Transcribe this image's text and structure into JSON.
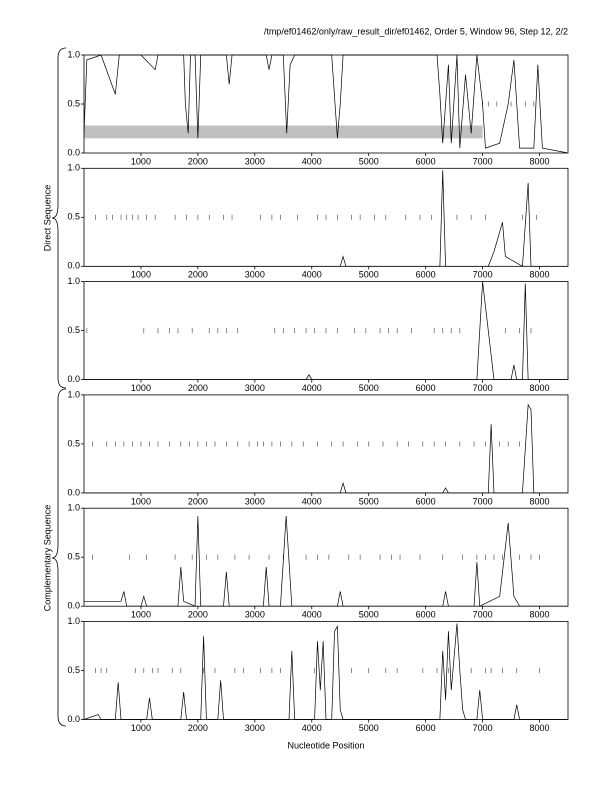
{
  "title": "/tmp/ef01462/only/raw_result_dir/ef01462, Order 5, Window 96, Step 12, 2/2",
  "xlabel": "Nucleotide Position",
  "group_labels": [
    "Direct Sequence",
    "Complementary Sequence"
  ],
  "chart_data": [
    {
      "type": "line",
      "xlim": [
        0,
        8500
      ],
      "ylim": [
        0,
        1
      ],
      "xticks": [
        1000,
        2000,
        3000,
        4000,
        5000,
        6000,
        7000,
        8000
      ],
      "yticks": [
        {
          "value": 0,
          "label": "0.0"
        },
        0.5,
        {
          "value": 1,
          "label": "1.0"
        }
      ],
      "highlight": {
        "x": [
          0,
          7000
        ],
        "y": [
          0.15,
          0.28
        ]
      },
      "x": [
        0,
        50,
        300,
        550,
        620,
        1000,
        1250,
        1300,
        1750,
        1780,
        1830,
        1870,
        1950,
        2000,
        2050,
        2500,
        2550,
        2600,
        3200,
        3250,
        3300,
        3500,
        3560,
        3620,
        3700,
        4350,
        4450,
        4500,
        4550,
        6200,
        6250,
        6300,
        6400,
        6450,
        6550,
        6600,
        6700,
        6800,
        6900,
        7000,
        7050,
        7300,
        7450,
        7550,
        7650,
        7900,
        7970,
        8050,
        8500
      ],
      "values": [
        0.2,
        0.95,
        1,
        0.6,
        1,
        1,
        0.85,
        1,
        1,
        0.5,
        0.2,
        1,
        1,
        0.15,
        1,
        1,
        0.7,
        1,
        1,
        0.85,
        1,
        1,
        0.2,
        0.9,
        1,
        1,
        0.15,
        0.5,
        1,
        1,
        0.6,
        0.1,
        0.9,
        0.1,
        1,
        0.05,
        0.8,
        0.2,
        1,
        0.5,
        0.05,
        0.1,
        0.5,
        0.95,
        0.05,
        0.05,
        0.9,
        0.05,
        0
      ],
      "markers": [
        7000,
        7100,
        7250,
        7500,
        7750,
        7900
      ]
    },
    {
      "type": "line",
      "xlim": [
        0,
        8500
      ],
      "ylim": [
        0,
        1
      ],
      "xticks": [
        1000,
        2000,
        3000,
        4000,
        5000,
        6000,
        7000,
        8000
      ],
      "yticks": [
        {
          "value": 0,
          "label": "0.0"
        },
        0.5,
        {
          "value": 1,
          "label": "1.0"
        }
      ],
      "x": [
        0,
        4500,
        4550,
        4600,
        6250,
        6300,
        6350,
        7100,
        7200,
        7350,
        7400,
        7700,
        7800,
        7850,
        8500
      ],
      "values": [
        0,
        0,
        0.1,
        0,
        0,
        0.98,
        0,
        0,
        0.15,
        0.45,
        0.1,
        0,
        0.85,
        0,
        0
      ],
      "markers": [
        200,
        400,
        500,
        650,
        750,
        850,
        950,
        1100,
        1250,
        1600,
        1800,
        2000,
        2200,
        2450,
        2600,
        3100,
        3300,
        3450,
        3750,
        4100,
        4250,
        4450,
        4700,
        4850,
        5100,
        5300,
        5650,
        5900,
        6100,
        6550,
        6800,
        7050,
        7700,
        7950
      ]
    },
    {
      "type": "line",
      "xlim": [
        0,
        8500
      ],
      "ylim": [
        0,
        1
      ],
      "xticks": [
        1000,
        2000,
        3000,
        4000,
        5000,
        6000,
        7000,
        8000
      ],
      "yticks": [
        {
          "value": 0,
          "label": "0.0"
        },
        0.5,
        {
          "value": 1,
          "label": "1.0"
        }
      ],
      "x": [
        0,
        3900,
        3950,
        4000,
        6900,
        7000,
        7100,
        7200,
        7500,
        7550,
        7600,
        7700,
        7750,
        7800,
        8500
      ],
      "values": [
        0,
        0,
        0.05,
        0,
        0,
        1,
        0.5,
        0,
        0,
        0.15,
        0,
        0,
        0.98,
        0,
        0
      ],
      "markers": [
        50,
        1050,
        1300,
        1500,
        1650,
        1900,
        2200,
        2350,
        2500,
        2700,
        3350,
        3500,
        3700,
        3900,
        4050,
        4250,
        4450,
        4750,
        4950,
        5200,
        5350,
        5500,
        5750,
        6150,
        6300,
        6450,
        6600,
        7400,
        7650,
        7850
      ]
    },
    {
      "type": "line",
      "xlim": [
        0,
        8500
      ],
      "ylim": [
        0,
        1
      ],
      "xticks": [
        1000,
        2000,
        3000,
        4000,
        5000,
        6000,
        7000,
        8000
      ],
      "yticks": [
        {
          "value": 0,
          "label": "0.0"
        },
        0.5,
        {
          "value": 1,
          "label": "1.0"
        }
      ],
      "x": [
        0,
        4500,
        4550,
        4600,
        6300,
        6350,
        6400,
        7100,
        7150,
        7200,
        7700,
        7800,
        7850,
        7900,
        8500
      ],
      "values": [
        0,
        0,
        0.1,
        0,
        0,
        0.05,
        0,
        0,
        0.7,
        0,
        0,
        0.9,
        0.85,
        0,
        0
      ],
      "markers": [
        150,
        400,
        550,
        700,
        850,
        1000,
        1150,
        1300,
        1500,
        1700,
        1850,
        2000,
        2150,
        2300,
        2500,
        2700,
        2900,
        3050,
        3150,
        3300,
        3450,
        3650,
        3850,
        4100,
        4350,
        4550,
        4800,
        5000,
        5250,
        5500,
        5700,
        5950,
        6150,
        6350,
        6600,
        6850,
        7050,
        7300,
        7450,
        7650
      ]
    },
    {
      "type": "line",
      "xlim": [
        0,
        8500
      ],
      "ylim": [
        0,
        1
      ],
      "xticks": [
        1000,
        2000,
        3000,
        4000,
        5000,
        6000,
        7000,
        8000
      ],
      "yticks": [
        {
          "value": 0,
          "label": "0.0"
        },
        0.5,
        {
          "value": 1,
          "label": "1.0"
        }
      ],
      "x": [
        0,
        650,
        700,
        750,
        1000,
        1050,
        1100,
        1650,
        1700,
        1750,
        1950,
        2000,
        2050,
        2450,
        2500,
        2550,
        3150,
        3200,
        3250,
        3450,
        3550,
        3650,
        4450,
        4500,
        4550,
        6300,
        6350,
        6400,
        6850,
        6900,
        6950,
        7300,
        7450,
        7550,
        7650,
        8500
      ],
      "values": [
        0.05,
        0.05,
        0.15,
        0,
        0,
        0.1,
        0,
        0,
        0.4,
        0.05,
        0,
        0.92,
        0,
        0,
        0.35,
        0,
        0,
        0.4,
        0,
        0,
        0.92,
        0,
        0,
        0.15,
        0,
        0,
        0.15,
        0,
        0,
        0.45,
        0,
        0.1,
        0.85,
        0.1,
        0,
        0
      ],
      "markers": [
        150,
        800,
        1100,
        1600,
        1900,
        2150,
        2350,
        2650,
        2900,
        3250,
        3500,
        3900,
        4100,
        4300,
        4650,
        4850,
        5200,
        5400,
        5550,
        5900,
        6300,
        6650,
        6900,
        7050,
        7200,
        7350,
        7650,
        7850,
        8000
      ]
    },
    {
      "type": "line",
      "xlim": [
        0,
        8500
      ],
      "ylim": [
        0,
        1
      ],
      "xticks": [
        1000,
        2000,
        3000,
        4000,
        5000,
        6000,
        7000,
        8000
      ],
      "yticks": [
        {
          "value": 0,
          "label": "0.0"
        },
        0.5,
        {
          "value": 1,
          "label": "1.0"
        }
      ],
      "x": [
        0,
        250,
        300,
        550,
        600,
        650,
        1100,
        1150,
        1200,
        1700,
        1750,
        1800,
        2050,
        2100,
        2150,
        2350,
        2400,
        2450,
        3600,
        3650,
        3700,
        4050,
        4100,
        4150,
        4200,
        4250,
        4350,
        4400,
        4450,
        4500,
        4550,
        6250,
        6300,
        6350,
        6400,
        6450,
        6550,
        6600,
        6650,
        6700,
        6900,
        6950,
        7000,
        7550,
        7600,
        7650,
        8500
      ],
      "values": [
        0,
        0.05,
        0,
        0,
        0.38,
        0,
        0,
        0.22,
        0,
        0,
        0.28,
        0,
        0,
        0.85,
        0,
        0,
        0.4,
        0,
        0,
        0.7,
        0,
        0,
        0.8,
        0.3,
        0.8,
        0,
        0,
        0.9,
        0.95,
        0.1,
        0,
        0,
        0.7,
        0.2,
        0.9,
        0.3,
        0.98,
        0.5,
        0.1,
        0,
        0,
        0.3,
        0,
        0,
        0.15,
        0,
        0
      ],
      "markers": [
        200,
        300,
        400,
        900,
        1050,
        1200,
        1300,
        1550,
        1700,
        2100,
        2300,
        2650,
        2800,
        3100,
        3300,
        3450,
        4050,
        4700,
        5000,
        5300,
        5500,
        5950,
        6200,
        6400,
        6800,
        7050,
        7150,
        7350,
        7600,
        8000
      ]
    }
  ]
}
